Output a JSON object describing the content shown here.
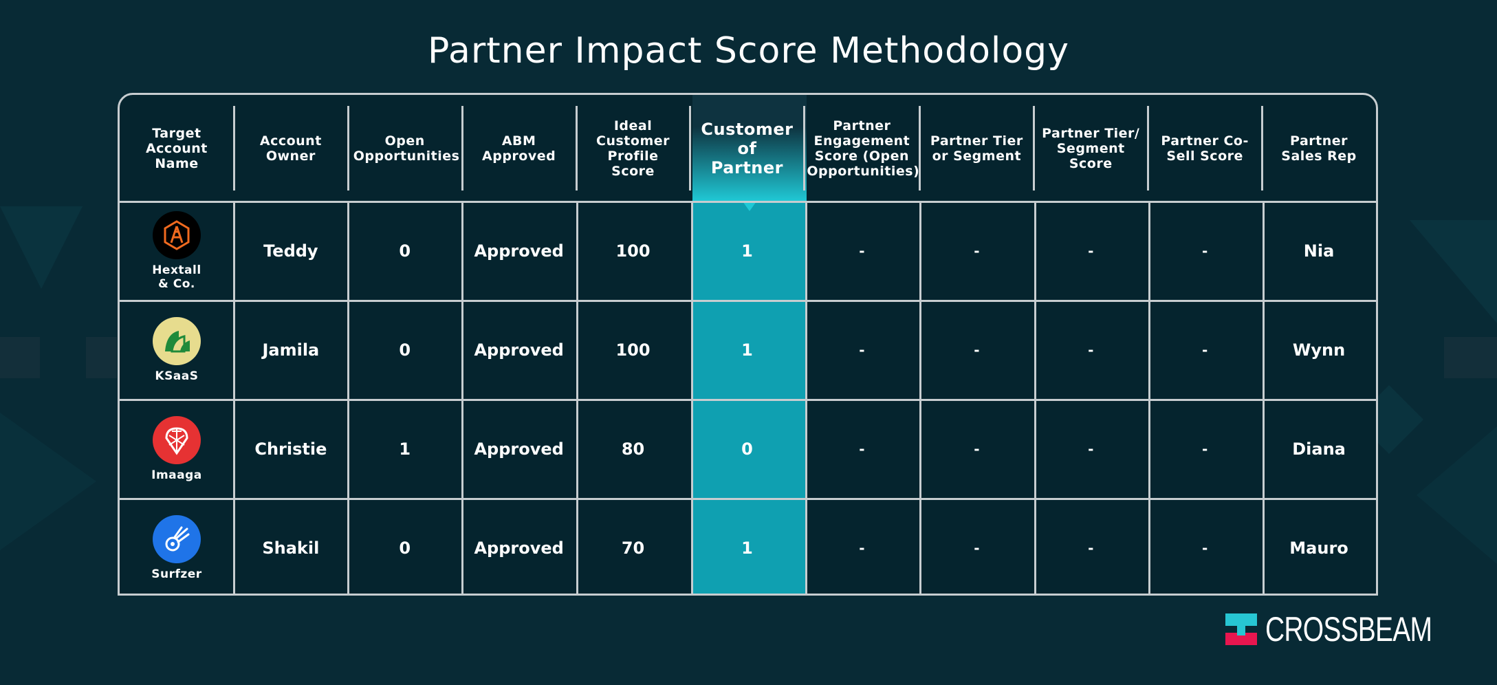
{
  "title": "Partner Impact Score Methodology",
  "headers": [
    "Target Account Name",
    "Account Owner",
    "Open Opportunities",
    "ABM Approved",
    "Ideal Customer Profile Score",
    "Customer of Partner",
    "Partner Engagement Score (Open Opportunities)",
    "Partner Tier or Segment",
    "Partner Tier/ Segment Score",
    "Partner Co-Sell Score",
    "Partner Sales Rep"
  ],
  "rows": [
    {
      "company": "Hextall & Co.",
      "logo_icon": "hextall-logo-icon",
      "owner": "Teddy",
      "open_opps": "0",
      "abm": "Approved",
      "icp": "100",
      "customer_of_partner": "1",
      "engagement": "-",
      "tier": "-",
      "tier_score": "-",
      "cosell": "-",
      "rep": "Nia"
    },
    {
      "company": "KSaaS",
      "logo_icon": "ksaas-logo-icon",
      "owner": "Jamila",
      "open_opps": "0",
      "abm": "Approved",
      "icp": "100",
      "customer_of_partner": "1",
      "engagement": "-",
      "tier": "-",
      "tier_score": "-",
      "cosell": "-",
      "rep": "Wynn"
    },
    {
      "company": "Imaaga",
      "logo_icon": "imaaga-logo-icon",
      "owner": "Christie",
      "open_opps": "1",
      "abm": "Approved",
      "icp": "80",
      "customer_of_partner": "0",
      "engagement": "-",
      "tier": "-",
      "tier_score": "-",
      "cosell": "-",
      "rep": "Diana"
    },
    {
      "company": "Surfzer",
      "logo_icon": "surfzer-logo-icon",
      "owner": "Shakil",
      "open_opps": "0",
      "abm": "Approved",
      "icp": "70",
      "customer_of_partner": "1",
      "engagement": "-",
      "tier": "-",
      "tier_score": "-",
      "cosell": "-",
      "rep": "Mauro"
    }
  ],
  "brand": {
    "name": "CROSSBEAM",
    "icon": "crossbeam-logo-icon"
  },
  "colors": {
    "background": "#082a35",
    "highlight": "#0fa0b1",
    "highlight_head": "#20c9d6",
    "grid": "#c7cdd0",
    "hextall": "#000000",
    "ksaas": "#e7dc8e",
    "imaaga": "#e63233",
    "surfzer": "#1f74e8",
    "crossbeam_teal": "#27c6d3",
    "crossbeam_red": "#e8164f"
  }
}
